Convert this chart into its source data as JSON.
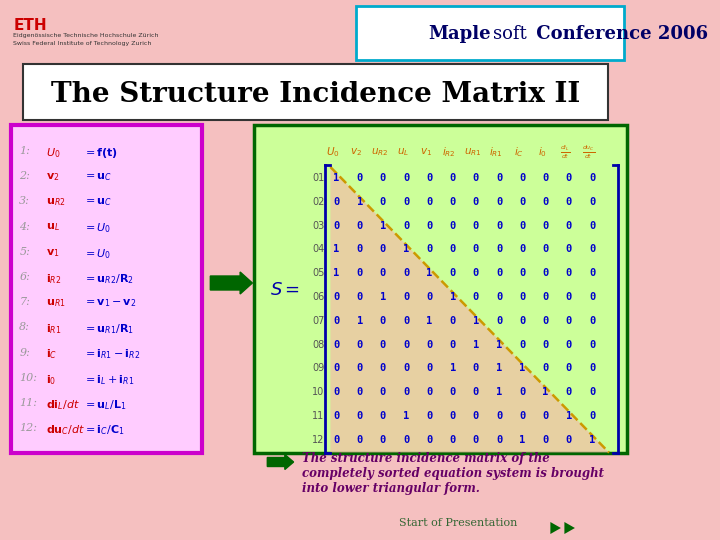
{
  "title": "The Structure Incidence Matrix II",
  "header_title": "Maplesoft Conference 2006",
  "bg_color": "#f5c0c0",
  "matrix": [
    [
      1,
      0,
      0,
      0,
      0,
      0,
      0,
      0,
      0,
      0,
      0,
      0
    ],
    [
      0,
      1,
      0,
      0,
      0,
      0,
      0,
      0,
      0,
      0,
      0,
      0
    ],
    [
      0,
      0,
      1,
      0,
      0,
      0,
      0,
      0,
      0,
      0,
      0,
      0
    ],
    [
      1,
      0,
      0,
      1,
      0,
      0,
      0,
      0,
      0,
      0,
      0,
      0
    ],
    [
      1,
      0,
      0,
      0,
      1,
      0,
      0,
      0,
      0,
      0,
      0,
      0
    ],
    [
      0,
      0,
      1,
      0,
      0,
      1,
      0,
      0,
      0,
      0,
      0,
      0
    ],
    [
      0,
      1,
      0,
      0,
      1,
      0,
      1,
      0,
      0,
      0,
      0,
      0
    ],
    [
      0,
      0,
      0,
      0,
      0,
      0,
      1,
      1,
      0,
      0,
      0,
      0
    ],
    [
      0,
      0,
      0,
      0,
      0,
      1,
      0,
      1,
      1,
      0,
      0,
      0
    ],
    [
      0,
      0,
      0,
      0,
      0,
      0,
      0,
      1,
      0,
      1,
      0,
      0
    ],
    [
      0,
      0,
      0,
      1,
      0,
      0,
      0,
      0,
      0,
      0,
      1,
      0
    ],
    [
      0,
      0,
      0,
      0,
      0,
      0,
      0,
      0,
      1,
      0,
      0,
      1
    ]
  ],
  "row_labels": [
    "01",
    "02",
    "03",
    "04",
    "05",
    "06",
    "07",
    "08",
    "09",
    "10",
    "11",
    "12"
  ],
  "bottom_text": "The structure incidence matrix of the completely sorted equation system is brought into lower triangular form.",
  "footer_text": "Start of Presentation",
  "matrix_bg": "#ccff99",
  "eq_box_bg": "#ffccff",
  "eq_box_border": "#cc00cc",
  "header_box_border": "#00aacc",
  "matrix_border": "#006600",
  "arrow_color": "#006600",
  "bracket_color": "#0000aa",
  "matrix_val_color": "#0000cc",
  "col_header_color": "#cc6600",
  "row_label_color": "#555555",
  "triangle_color": "#ffaaaa",
  "diag_line_color": "#cc9900",
  "bottom_text_color": "#660066",
  "footer_color": "#336633",
  "title_color": "#000000",
  "eth_color": "#cc0000"
}
